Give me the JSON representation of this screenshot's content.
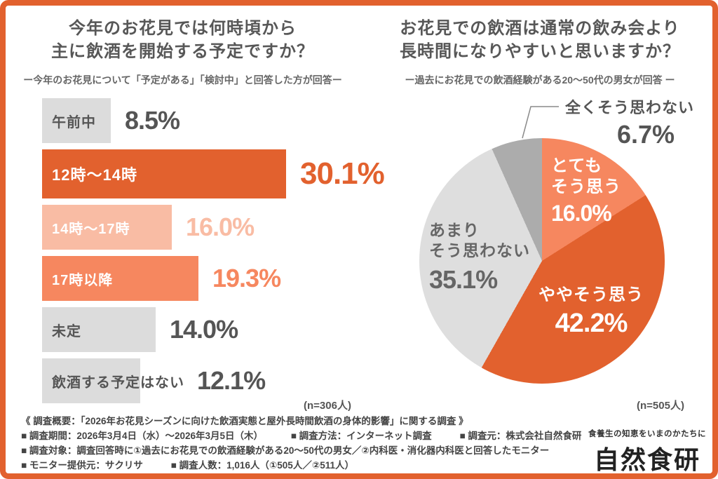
{
  "page": {
    "border_color": "#E2612E",
    "background_color": "#FFFFFF"
  },
  "left_chart": {
    "title_line1": "今年のお花見では何時頃から",
    "title_line2": "主に飲酒を開始する予定ですか？",
    "subtitle": "ー今年のお花見について「予定がある」「検討中」と回答した方が回答ー",
    "n_label": "(n=306人)"
  },
  "right_chart": {
    "title_line1": "お花見での飲酒は通常の飲み会より",
    "title_line2": "長時間になりやすいと思いますか？",
    "subtitle": "ー過去にお花見での飲酒経験がある20〜50代の男女が回答 ー",
    "n_label": "(n=505人)",
    "pie_labels": {
      "very_line1": "とても",
      "very_line2": "そう思う",
      "notmuch_line1": "あまり",
      "notmuch_line2": "そう思わない"
    }
  },
  "footer": {
    "line1": "《 調査概要：「2026年お花見シーズンに向けた飲酒実態と屋外長時間飲酒の身体的影響」に関する調査 》",
    "line2_item1": "■ 調査期間：2026年3月4日（水）〜2026年3月5日（木）",
    "line2_item2": "■ 調査方法：インターネット調査",
    "line2_item3": "■ 調査元：株式会社自然食研",
    "line3_item1": "■ 調査対象：調査回答時に①過去にお花見での飲酒経験がある20〜50代の男女／②内科医・消化器内科医と回答したモニター",
    "line4_item1": "■ モニター提供元：サクリサ",
    "line4_item2": "■ 調査人数：1,016人（①505人／②511人）"
  },
  "logo": {
    "tagline": "食養生の知恵をいまのかたちに",
    "name": "自然食研"
  },
  "chart_data": [
    {
      "type": "bar",
      "orientation": "horizontal",
      "title": "今年のお花見では何時頃から主に飲酒を開始する予定ですか？",
      "subtitle": "ー今年のお花見について「予定がある」「検討中」と回答した方が回答ー",
      "sample_size": "n=306人",
      "categories": [
        "午前中",
        "12時〜14時",
        "14時〜17時",
        "17時以降",
        "未定",
        "飲酒する予定はない"
      ],
      "values": [
        8.5,
        30.1,
        16.0,
        19.3,
        14.0,
        12.1
      ],
      "value_labels": [
        "8.5%",
        "30.1%",
        "16.0%",
        "19.3%",
        "14.0%",
        "12.1%"
      ],
      "bar_colors": [
        "#DCDCDC",
        "#E2612E",
        "#F9BCA4",
        "#F6875F",
        "#DCDCDC",
        "#DCDCDC"
      ],
      "label_colors": [
        "#555555",
        "#FFFFFF",
        "#FFFFFF",
        "#FFFFFF",
        "#555555",
        "#555555"
      ],
      "value_colors": [
        "#555555",
        "#E2612E",
        "#F9BCA4",
        "#F6875F",
        "#555555",
        "#555555"
      ],
      "xlim": [
        0,
        32
      ],
      "grid": false
    },
    {
      "type": "pie",
      "title": "お花見での飲酒は通常の飲み会より長時間になりやすいと思いますか？",
      "subtitle": "ー過去にお花見での飲酒経験がある20〜50代の男女が回答 ー",
      "sample_size": "n=505人",
      "labels": [
        "とてもそう思う",
        "ややそう思う",
        "あまりそう思わない",
        "全くそう思わない"
      ],
      "values": [
        16.0,
        42.2,
        35.1,
        6.7
      ],
      "value_labels": [
        "16.0%",
        "42.2%",
        "35.1%",
        "6.7%"
      ],
      "colors": [
        "#F6875F",
        "#E2612E",
        "#DEDEDE",
        "#ACACAC"
      ],
      "start_angle": "top",
      "direction": "clockwise",
      "legend_position": "labels-on-slices"
    }
  ]
}
